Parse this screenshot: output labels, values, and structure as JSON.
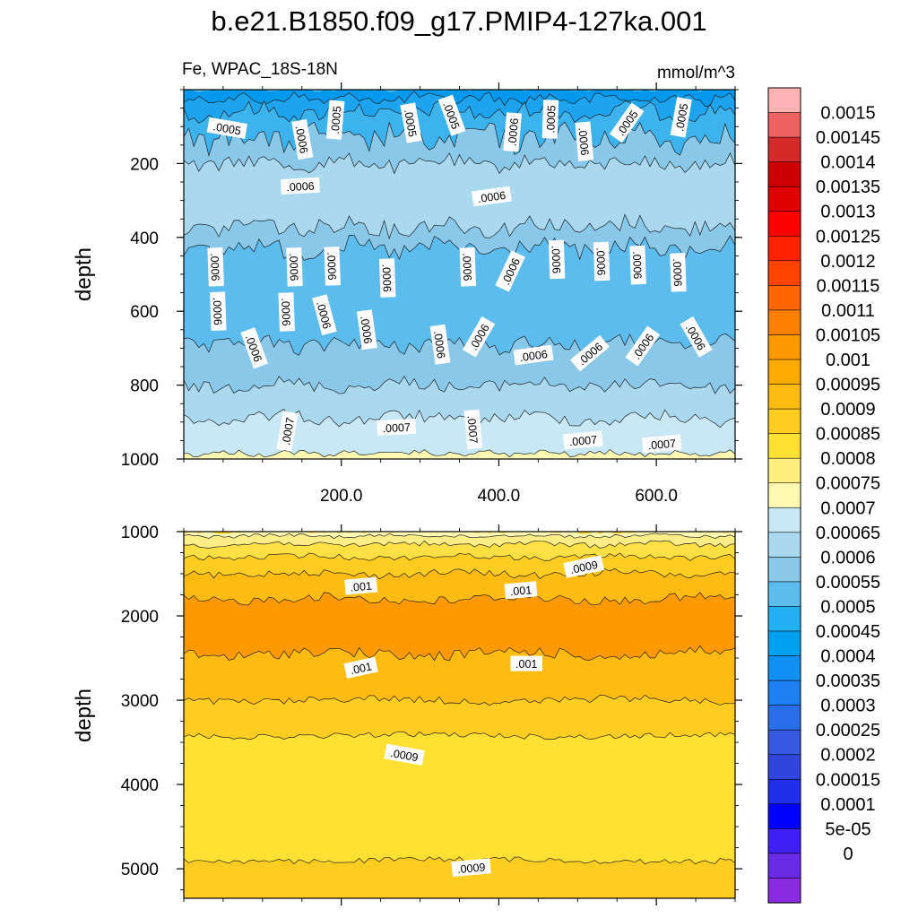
{
  "title": "b.e21.B1850.f09_g17.PMIP4-127ka.001",
  "subtitle_left": "Fe, WPAC_18S-18N",
  "subtitle_right": "mmol/m^3",
  "chart_data": [
    {
      "type": "heatmap",
      "name": "upper",
      "xlim": [
        0,
        700
      ],
      "ylim": [
        1000,
        0
      ],
      "xticks": [
        200,
        400,
        600
      ],
      "xtick_labels": [
        "200.0",
        "400.0",
        "600.0"
      ],
      "yticks": [
        200,
        400,
        600,
        800,
        1000
      ],
      "ytick_labels": [
        "200",
        "400",
        "600",
        "800",
        "1000"
      ],
      "ylabel": "depth",
      "contour_labels": [
        {
          "text": ".0005",
          "x": 55,
          "y": 105,
          "rot": 10
        },
        {
          "text": ".0006",
          "x": 150,
          "y": 135,
          "rot": 80
        },
        {
          "text": ".0005",
          "x": 193,
          "y": 82,
          "rot": -85
        },
        {
          "text": ".0005",
          "x": 288,
          "y": 90,
          "rot": 80
        },
        {
          "text": ".0005",
          "x": 340,
          "y": 70,
          "rot": 70
        },
        {
          "text": ".0006",
          "x": 418,
          "y": 115,
          "rot": -85
        },
        {
          "text": ".0005",
          "x": 466,
          "y": 80,
          "rot": -88
        },
        {
          "text": ".0006",
          "x": 508,
          "y": 140,
          "rot": 85
        },
        {
          "text": ".0005",
          "x": 563,
          "y": 90,
          "rot": -55
        },
        {
          "text": ".0005",
          "x": 632,
          "y": 75,
          "rot": -80
        },
        {
          "text": ".0006",
          "x": 148,
          "y": 262,
          "rot": -3
        },
        {
          "text": ".0006",
          "x": 391,
          "y": 290,
          "rot": -8
        },
        {
          "text": ".0006",
          "x": 40,
          "y": 480,
          "rot": 88
        },
        {
          "text": ".0006",
          "x": 140,
          "y": 480,
          "rot": 88
        },
        {
          "text": ".0006",
          "x": 188,
          "y": 478,
          "rot": 88
        },
        {
          "text": ".0006",
          "x": 258,
          "y": 510,
          "rot": 88
        },
        {
          "text": ".0006",
          "x": 360,
          "y": 480,
          "rot": 88
        },
        {
          "text": ".0006",
          "x": 415,
          "y": 492,
          "rot": -65
        },
        {
          "text": ".0006",
          "x": 473,
          "y": 460,
          "rot": 88
        },
        {
          "text": ".0006",
          "x": 530,
          "y": 465,
          "rot": 88
        },
        {
          "text": ".0006",
          "x": 576,
          "y": 475,
          "rot": 88
        },
        {
          "text": ".0006",
          "x": 627,
          "y": 495,
          "rot": 88
        },
        {
          "text": ".0006",
          "x": 43,
          "y": 600,
          "rot": 88
        },
        {
          "text": ".0006",
          "x": 130,
          "y": 602,
          "rot": 88
        },
        {
          "text": ".0006",
          "x": 178,
          "y": 610,
          "rot": 75
        },
        {
          "text": ".0006",
          "x": 89,
          "y": 700,
          "rot": 70
        },
        {
          "text": ".0006",
          "x": 232,
          "y": 650,
          "rot": 82
        },
        {
          "text": ".0006",
          "x": 325,
          "y": 690,
          "rot": 82
        },
        {
          "text": ".0006",
          "x": 375,
          "y": 670,
          "rot": -60
        },
        {
          "text": ".0006",
          "x": 444,
          "y": 720,
          "rot": -8
        },
        {
          "text": ".0006",
          "x": 516,
          "y": 715,
          "rot": -40
        },
        {
          "text": ".0006",
          "x": 583,
          "y": 695,
          "rot": -55
        },
        {
          "text": ".0006",
          "x": 650,
          "y": 670,
          "rot": 60
        },
        {
          "text": ".0007",
          "x": 132,
          "y": 925,
          "rot": -80
        },
        {
          "text": ".0007",
          "x": 270,
          "y": 915,
          "rot": -3
        },
        {
          "text": ".0007",
          "x": 367,
          "y": 920,
          "rot": 85
        },
        {
          "text": ".0007",
          "x": 507,
          "y": 950,
          "rot": -5
        },
        {
          "text": ".0007",
          "x": 607,
          "y": 960,
          "rot": -5
        }
      ]
    },
    {
      "type": "heatmap",
      "name": "lower",
      "xlim": [
        0,
        700
      ],
      "ylim": [
        5350,
        1000
      ],
      "yticks": [
        1000,
        2000,
        3000,
        4000,
        5000
      ],
      "ytick_labels": [
        "1000",
        "2000",
        "3000",
        "4000",
        "5000"
      ],
      "ylabel": "depth",
      "contour_labels": [
        {
          "text": ".0009",
          "x": 508,
          "y": 1420,
          "rot": -12
        },
        {
          "text": ".001",
          "x": 225,
          "y": 1650,
          "rot": -5
        },
        {
          "text": ".001",
          "x": 428,
          "y": 1700,
          "rot": -5
        },
        {
          "text": ".001",
          "x": 225,
          "y": 2620,
          "rot": -12
        },
        {
          "text": ".001",
          "x": 435,
          "y": 2570,
          "rot": 0
        },
        {
          "text": ".0009",
          "x": 280,
          "y": 3650,
          "rot": 10
        },
        {
          "text": ".0009",
          "x": 365,
          "y": 4990,
          "rot": -5
        }
      ]
    }
  ],
  "colorbar": {
    "labels": [
      "0.0015",
      "0.00145",
      "0.0014",
      "0.00135",
      "0.0013",
      "0.00125",
      "0.0012",
      "0.00115",
      "0.0011",
      "0.00105",
      "0.001",
      "0.00095",
      "0.0009",
      "0.00085",
      "0.0008",
      "0.00075",
      "0.0007",
      "0.00065",
      "0.0006",
      "0.00055",
      "0.0005",
      "0.00045",
      "0.0004",
      "0.00035",
      "0.0003",
      "0.00025",
      "0.0002",
      "0.00015",
      "0.0001",
      "5e-05",
      "0"
    ],
    "colors": [
      "#ffb3b3",
      "#ee6262",
      "#d42a2a",
      "#cc0000",
      "#e00000",
      "#ff0000",
      "#ff2200",
      "#ff4400",
      "#ff6600",
      "#ff8000",
      "#ff9900",
      "#ffaa00",
      "#ffbb11",
      "#ffcc22",
      "#ffe033",
      "#fff080",
      "#fff9b3",
      "#c8e8f5",
      "#a9d8ef",
      "#8ac8ea",
      "#5bbced",
      "#22b0f2",
      "#00a0f0",
      "#1090f5",
      "#1e7ff0",
      "#2a6de8",
      "#3659e0",
      "#2f45dc",
      "#1f2ee8",
      "#0000ff",
      "#3f1ff5",
      "#6a2be6",
      "#8a2be2"
    ]
  }
}
